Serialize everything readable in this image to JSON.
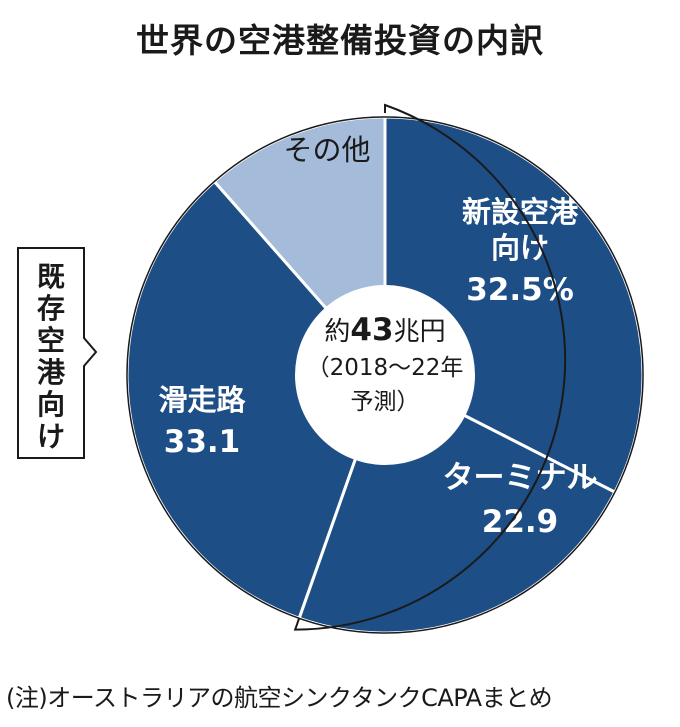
{
  "title": "世界の空港整備投資の内訳",
  "source_note": "(注)オーストラリアの航空シンクタンクCAPAまとめ",
  "bracket_label": [
    "既",
    "存",
    "空",
    "港",
    "向",
    "け"
  ],
  "center": {
    "prefix": "約",
    "value": "43",
    "unit": "兆円",
    "line2": "（2018〜22年",
    "line3": "予測）"
  },
  "chart_data": {
    "type": "pie",
    "title": "世界の空港整備投資の内訳",
    "total_label": "約43兆円",
    "slices": [
      {
        "label": "新設空港向け",
        "value": 32.5,
        "value_label": "32.5%",
        "color": "#1d4e85"
      },
      {
        "label": "ターミナル",
        "value": 22.9,
        "value_label": "22.9",
        "color": "#1d4e85"
      },
      {
        "label": "滑走路",
        "value": 33.1,
        "value_label": "33.1",
        "color": "#1d4e85"
      },
      {
        "label": "その他",
        "value": 11.5,
        "value_label": "",
        "color": "#a4bbda"
      }
    ],
    "slice_text_lines": [
      [
        "新設空港",
        "向け",
        "32.5%"
      ],
      [
        "ターミナル",
        "22.9"
      ],
      [
        "滑走路",
        "33.1"
      ],
      [
        "その他"
      ]
    ]
  }
}
